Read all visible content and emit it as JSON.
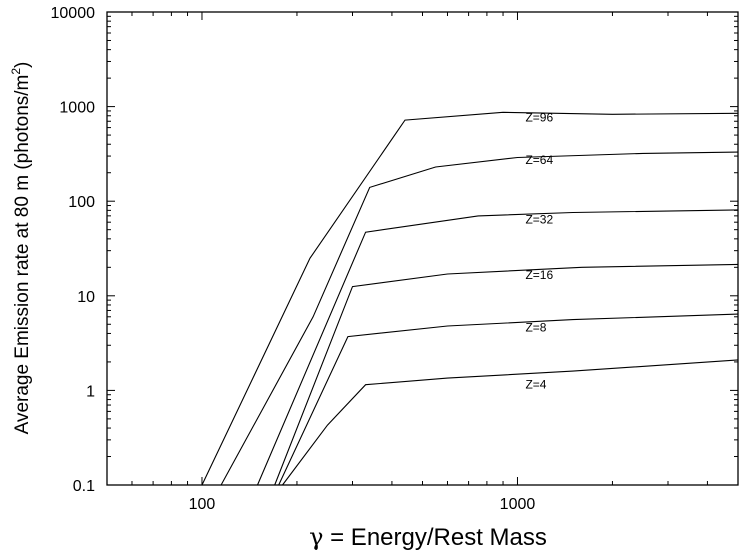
{
  "chart_data": {
    "type": "line",
    "title": "",
    "xlabel_symbol": "γ",
    "xlabel_text": " = Energy/Rest Mass",
    "ylabel_text": "Average Emission rate at 80 m (photons/m",
    "ylabel_sup": "2",
    "ylabel_close": ")",
    "xscale": "log",
    "yscale": "log",
    "xlim": [
      50,
      5000
    ],
    "ylim": [
      0.1,
      10000
    ],
    "x_ticks": [
      {
        "value": 100,
        "label": "100"
      },
      {
        "value": 1000,
        "label": "1000"
      }
    ],
    "y_ticks": [
      {
        "value": 0.1,
        "label": "0.1"
      },
      {
        "value": 1,
        "label": "1"
      },
      {
        "value": 10,
        "label": "10"
      },
      {
        "value": 100,
        "label": "100"
      },
      {
        "value": 1000,
        "label": "1000"
      },
      {
        "value": 10000,
        "label": "10000"
      }
    ],
    "series": [
      {
        "name": "Z=96",
        "label_x": 1060,
        "label_y": 700,
        "x": [
          100,
          220,
          440,
          900,
          2000,
          5000
        ],
        "y": [
          0.1,
          25,
          720,
          870,
          830,
          850
        ]
      },
      {
        "name": "Z=64",
        "label_x": 1060,
        "label_y": 248,
        "x": [
          115,
          225,
          340,
          550,
          1000,
          2500,
          5000
        ],
        "y": [
          0.1,
          6,
          140,
          230,
          290,
          320,
          330
        ]
      },
      {
        "name": "Z=32",
        "label_x": 1060,
        "label_y": 58,
        "x": [
          150,
          330,
          750,
          1500,
          5000
        ],
        "y": [
          0.1,
          47,
          70,
          76,
          81
        ]
      },
      {
        "name": "Z=16",
        "label_x": 1060,
        "label_y": 15,
        "x": [
          170,
          300,
          600,
          1600,
          5000
        ],
        "y": [
          0.1,
          12.5,
          17,
          20,
          21.5
        ]
      },
      {
        "name": "Z=8",
        "label_x": 1060,
        "label_y": 4.2,
        "x": [
          175,
          290,
          600,
          1500,
          5000
        ],
        "y": [
          0.1,
          3.7,
          4.8,
          5.6,
          6.4
        ]
      },
      {
        "name": "Z=4",
        "label_x": 1060,
        "label_y": 1.05,
        "x": [
          180,
          250,
          330,
          600,
          1500,
          5000
        ],
        "y": [
          0.1,
          0.43,
          1.15,
          1.35,
          1.6,
          2.1
        ]
      }
    ]
  }
}
